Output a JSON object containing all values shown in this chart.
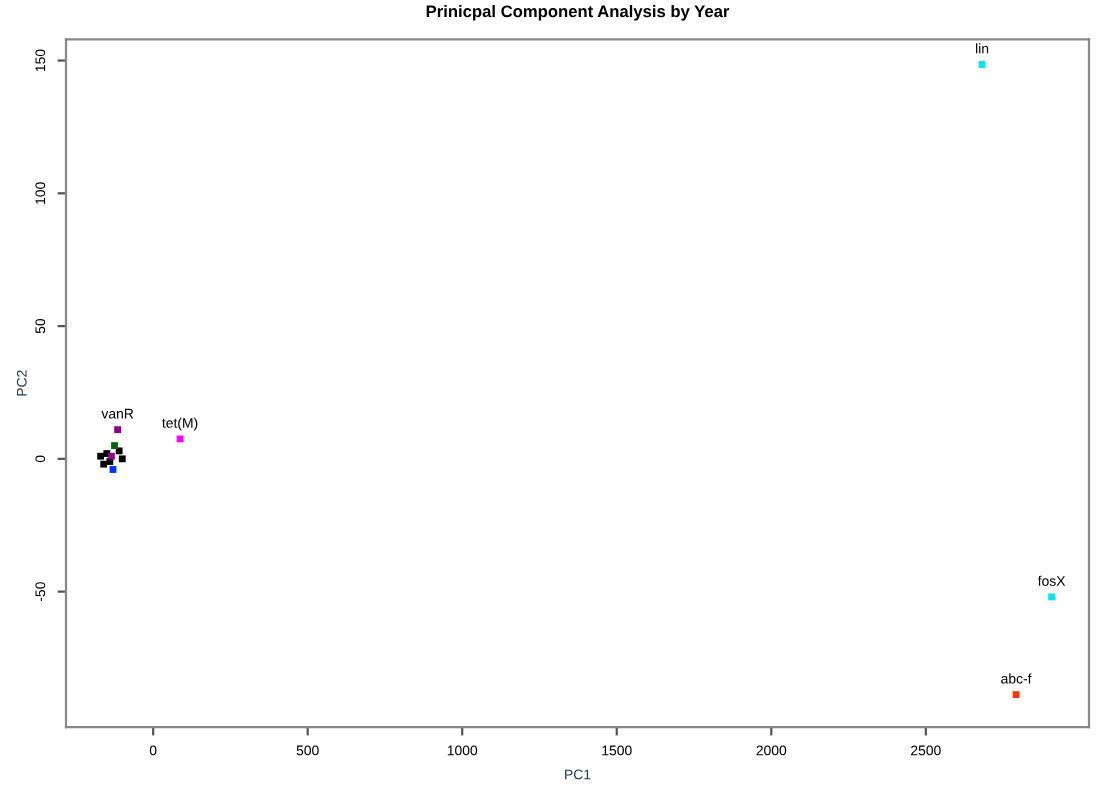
{
  "chart_data": {
    "type": "scatter",
    "title": "Prinicpal Component Analysis by Year",
    "xlabel": "PC1",
    "ylabel": "PC2",
    "x": [
      2682,
      2907,
      2792,
      87,
      -115,
      -130,
      -150,
      -170,
      -110,
      -140,
      -125,
      -160,
      -100,
      -135
    ],
    "values": [
      148.5,
      -52,
      -88.8,
      7.5,
      11,
      -4,
      2,
      1,
      3,
      -1,
      5,
      -2,
      0,
      1
    ],
    "colors": [
      "#00e5ee",
      "#00e5ee",
      "#ff3300",
      "#ff00ff",
      "#8b008b",
      "#0033ff",
      "#000000",
      "#000000",
      "#000000",
      "#000000",
      "#006400",
      "#000000",
      "#000000",
      "#8b008b"
    ],
    "annotations": [
      {
        "text": "lin",
        "x": 2682,
        "y": 148.5
      },
      {
        "text": "fosX",
        "x": 2907,
        "y": -52
      },
      {
        "text": "abc-f",
        "x": 2792,
        "y": -88.8
      },
      {
        "text": "tet(M)",
        "x": 87,
        "y": 7.5
      },
      {
        "text": "vanR",
        "x": -115,
        "y": 11
      }
    ],
    "xlim": [
      -282,
      3028
    ],
    "ylim": [
      -101,
      158
    ],
    "xticks": [
      0,
      500,
      1000,
      1500,
      2000,
      2500
    ],
    "yticks": [
      -50,
      0,
      50,
      100,
      150
    ],
    "marker": "square",
    "grid": false,
    "legend": false
  }
}
